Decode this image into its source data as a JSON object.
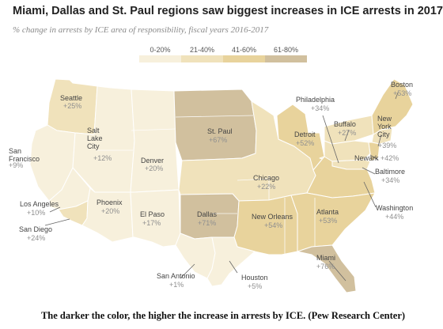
{
  "title": "Miami, Dallas and St. Paul regions saw biggest increases in ICE arrests in 2017",
  "subtitle": "% change in arrests by ICE area of responsibility, fiscal years 2016-2017",
  "legend": [
    {
      "label": "0-20%",
      "color": "#f7f0dc"
    },
    {
      "label": "21-40%",
      "color": "#f0e2bb"
    },
    {
      "label": "41-60%",
      "color": "#e8d39c"
    },
    {
      "label": "61-80%",
      "color": "#d1c09e"
    }
  ],
  "regions": [
    {
      "name": "Seattle",
      "value": "+25%",
      "color": "#f0e2bb"
    },
    {
      "name": "San Francisco",
      "value": "+9%",
      "color": "#f7f0dc"
    },
    {
      "name": "Salt Lake City",
      "value": "+12%",
      "color": "#f7f0dc"
    },
    {
      "name": "Denver",
      "value": "+20%",
      "color": "#f7f0dc"
    },
    {
      "name": "St. Paul",
      "value": "+67%",
      "color": "#d1c09e"
    },
    {
      "name": "Chicago",
      "value": "+22%",
      "color": "#f0e2bb"
    },
    {
      "name": "Detroit",
      "value": "+52%",
      "color": "#e8d39c"
    },
    {
      "name": "Philadelphia",
      "value": "+34%",
      "color": "#f0e2bb"
    },
    {
      "name": "Buffalo",
      "value": "+27%",
      "color": "#f0e2bb"
    },
    {
      "name": "Boston",
      "value": "+53%",
      "color": "#e8d39c"
    },
    {
      "name": "New York City",
      "value": "+39%",
      "color": "#f0e2bb"
    },
    {
      "name": "Newark",
      "value": "+42%",
      "color": "#e8d39c"
    },
    {
      "name": "Baltimore",
      "value": "+34%",
      "color": "#f0e2bb"
    },
    {
      "name": "Washington",
      "value": "+44%",
      "color": "#e8d39c"
    },
    {
      "name": "Atlanta",
      "value": "+53%",
      "color": "#e8d39c"
    },
    {
      "name": "New Orleans",
      "value": "+54%",
      "color": "#e8d39c"
    },
    {
      "name": "Miami",
      "value": "+76%",
      "color": "#d1c09e"
    },
    {
      "name": "Dallas",
      "value": "+71%",
      "color": "#d1c09e"
    },
    {
      "name": "Houston",
      "value": "+5%",
      "color": "#f7f0dc"
    },
    {
      "name": "San Antonio",
      "value": "+1%",
      "color": "#f7f0dc"
    },
    {
      "name": "El Paso",
      "value": "+17%",
      "color": "#f7f0dc"
    },
    {
      "name": "Phoenix",
      "value": "+20%",
      "color": "#f7f0dc"
    },
    {
      "name": "Los Angeles",
      "value": "+10%",
      "color": "#f7f0dc"
    },
    {
      "name": "San Diego",
      "value": "+24%",
      "color": "#f0e2bb"
    }
  ],
  "caption": "The darker the color, the higher the increase in arrests by ICE. (Pew Research Center)"
}
